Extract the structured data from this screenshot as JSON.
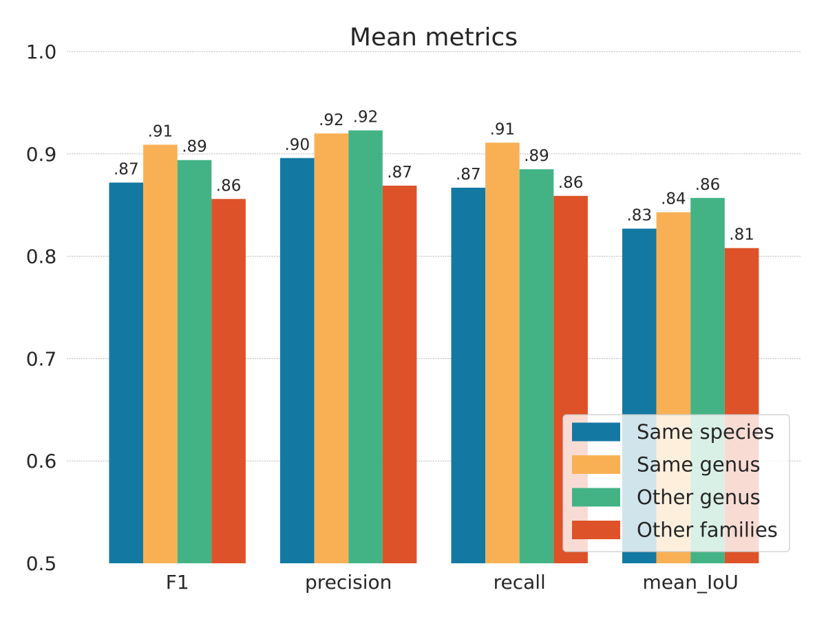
{
  "chart_data": {
    "type": "bar",
    "title": "Mean metrics",
    "xlabel": "",
    "ylabel": "",
    "categories": [
      "F1",
      "precision",
      "recall",
      "mean_IoU"
    ],
    "series": [
      {
        "name": "Same species",
        "color": "#1479A2",
        "values": [
          0.872,
          0.896,
          0.867,
          0.827
        ],
        "labels": [
          ".87",
          ".90",
          ".87",
          ".83"
        ]
      },
      {
        "name": "Same genus",
        "color": "#F9B054",
        "values": [
          0.909,
          0.92,
          0.911,
          0.843
        ],
        "labels": [
          ".91",
          ".92",
          ".91",
          ".84"
        ]
      },
      {
        "name": "Other genus",
        "color": "#43B386",
        "values": [
          0.894,
          0.923,
          0.885,
          0.857
        ],
        "labels": [
          ".89",
          ".92",
          ".89",
          ".86"
        ]
      },
      {
        "name": "Other families",
        "color": "#DD5228",
        "values": [
          0.856,
          0.869,
          0.859,
          0.808
        ],
        "labels": [
          ".86",
          ".87",
          ".86",
          ".81"
        ]
      }
    ],
    "ylim": [
      0.5,
      1.0
    ],
    "yticks": [
      0.5,
      0.6,
      0.7,
      0.8,
      0.9,
      1.0
    ],
    "ytick_labels": [
      "0.5",
      "0.6",
      "0.7",
      "0.8",
      "0.9",
      "1.0"
    ],
    "grid": true,
    "legend_position": "lower-right"
  }
}
